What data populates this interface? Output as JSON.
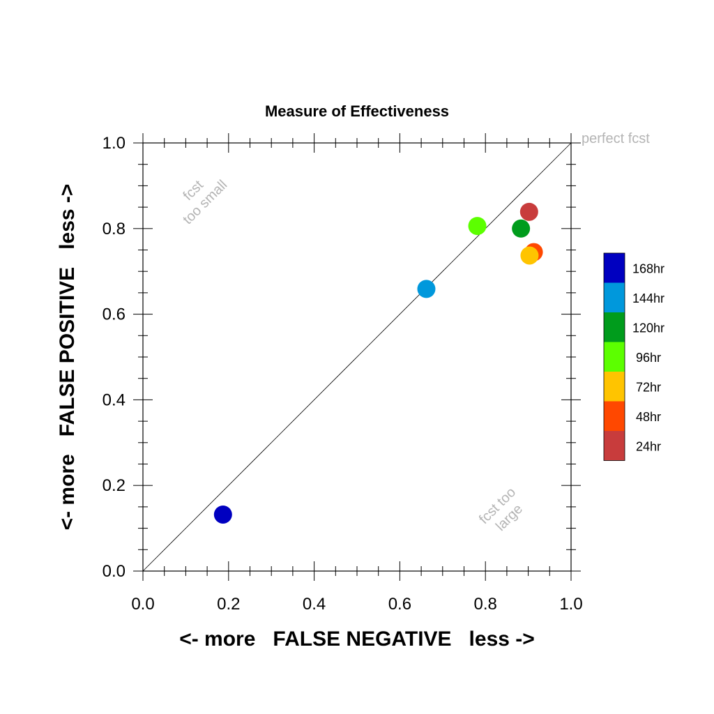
{
  "chart_data": {
    "type": "scatter",
    "title": "Measure of Effectiveness",
    "xlabel": "<- more   FALSE NEGATIVE   less ->",
    "ylabel": "<- more   FALSE POSITIVE   less ->",
    "xlim": [
      0.0,
      1.0
    ],
    "ylim": [
      0.0,
      1.0
    ],
    "xticks": [
      "0.0",
      "0.2",
      "0.4",
      "0.6",
      "0.8",
      "1.0"
    ],
    "yticks": [
      "0.0",
      "0.2",
      "0.4",
      "0.6",
      "0.8",
      "1.0"
    ],
    "grid": false,
    "reference_line": {
      "from": [
        0.0,
        0.0
      ],
      "to": [
        1.0,
        1.0
      ]
    },
    "annotations": {
      "perfect": "perfect fcst",
      "too_small_line1": "fcst",
      "too_small_line2": "too small",
      "too_large_line1": "fcst too",
      "too_large_line2": "large"
    },
    "legend_position": "right",
    "series": [
      {
        "name": "168hr",
        "color": "#0000c0",
        "x": 0.187,
        "y": 0.132
      },
      {
        "name": "144hr",
        "color": "#0098dc",
        "x": 0.662,
        "y": 0.659
      },
      {
        "name": "120hr",
        "color": "#009c1c",
        "x": 0.883,
        "y": 0.8
      },
      {
        "name": "96hr",
        "color": "#5cff00",
        "x": 0.781,
        "y": 0.806
      },
      {
        "name": "72hr",
        "color": "#ffc400",
        "x": 0.903,
        "y": 0.737
      },
      {
        "name": "48hr",
        "color": "#ff4800",
        "x": 0.913,
        "y": 0.745
      },
      {
        "name": "24hr",
        "color": "#c83c3c",
        "x": 0.902,
        "y": 0.839
      }
    ]
  }
}
